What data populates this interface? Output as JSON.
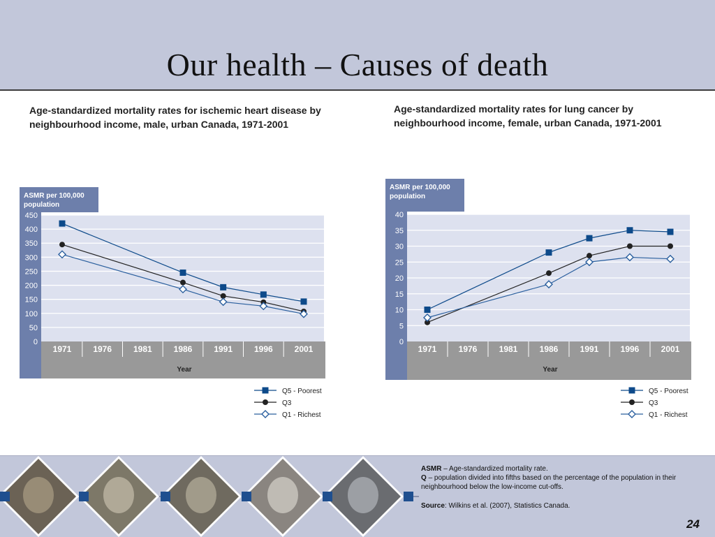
{
  "slide": {
    "title": "Our health – Causes of death",
    "page_number": "24"
  },
  "footnotes": {
    "asmr_term": "ASMR",
    "asmr_text": "– Age-standardized mortality rate.",
    "q_term": "Q",
    "q_text": "– population divided into fifths based on the percentage of the population in their neighbourhood below the low-income cut-offs.",
    "source_term": "Source",
    "source_text": ": Wilkins et al. (2007), Statistics Canada."
  },
  "colors": {
    "header_bg": "#c2c7da",
    "panel_blue": "#6d7fab",
    "plot_bg": "#dde1ef",
    "axis_bg": "#999999",
    "q5_color": "#0d4a8a",
    "q3_color": "#222222",
    "q1_color": "#2a5f9e"
  },
  "photo_strip": {
    "icons": [
      "elderly-woman-photo",
      "family-photo",
      "grandfather-photo",
      "hands-photo",
      "traffic-photo"
    ]
  },
  "chart_data": [
    {
      "type": "line",
      "title": "Age-standardized mortality rates for ischemic heart disease by neighbourhood income, male, urban Canada, 1971-2001",
      "ylabel": "ASMR per 100,000 population",
      "xlabel": "Year",
      "categories": [
        "1971",
        "1976",
        "1981",
        "1986",
        "1991",
        "1996",
        "2001"
      ],
      "ylim": [
        0,
        450
      ],
      "yticks": [
        0,
        50,
        100,
        150,
        200,
        250,
        300,
        350,
        400,
        450
      ],
      "grid": true,
      "legend_position": "bottom-right",
      "series": [
        {
          "name": "Q5 - Poorest",
          "marker": "square",
          "values": [
            420,
            null,
            null,
            245,
            193,
            167,
            142
          ]
        },
        {
          "name": "Q3",
          "marker": "circle",
          "values": [
            345,
            null,
            null,
            210,
            162,
            140,
            107
          ]
        },
        {
          "name": "Q1 - Richest",
          "marker": "diamond",
          "values": [
            310,
            null,
            null,
            186,
            141,
            126,
            98
          ]
        }
      ]
    },
    {
      "type": "line",
      "title": "Age-standardized mortality rates for lung cancer by neighbourhood income, female, urban Canada, 1971-2001",
      "ylabel": "ASMR per 100,000 population",
      "xlabel": "Year",
      "categories": [
        "1971",
        "1976",
        "1981",
        "1986",
        "1991",
        "1996",
        "2001"
      ],
      "ylim": [
        0,
        40
      ],
      "yticks": [
        0,
        5,
        10,
        15,
        20,
        25,
        30,
        35,
        40
      ],
      "grid": true,
      "legend_position": "bottom-right",
      "series": [
        {
          "name": "Q5 - Poorest",
          "marker": "square",
          "values": [
            10,
            null,
            null,
            28,
            32.5,
            35,
            34.5
          ]
        },
        {
          "name": "Q3",
          "marker": "circle",
          "values": [
            6,
            null,
            null,
            21.5,
            27,
            30,
            30
          ]
        },
        {
          "name": "Q1 - Richest",
          "marker": "diamond",
          "values": [
            7.5,
            null,
            null,
            18,
            25,
            26.5,
            26
          ]
        }
      ]
    }
  ]
}
